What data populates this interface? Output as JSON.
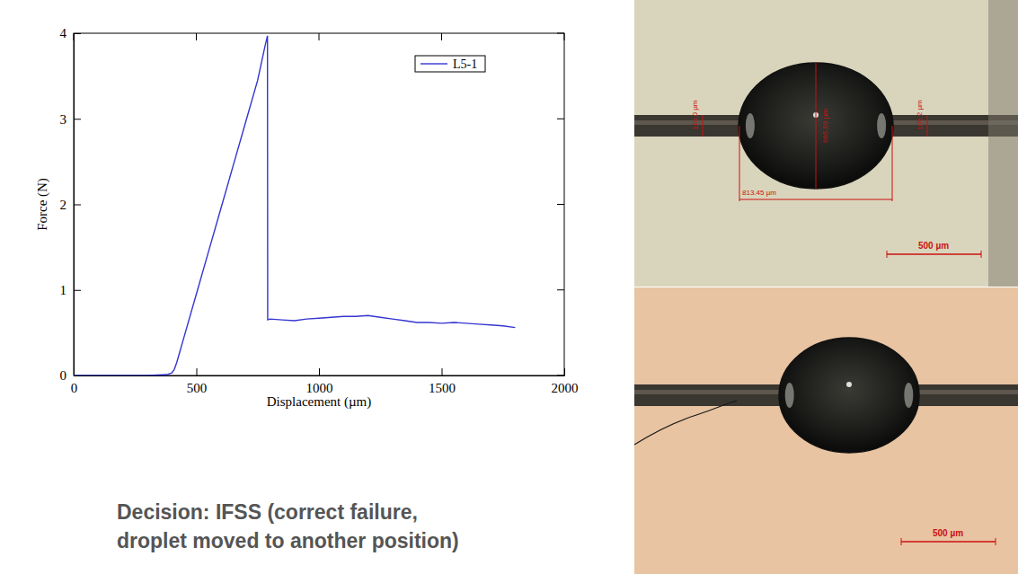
{
  "chart_data": {
    "type": "line",
    "x_label": "Displacement (µm)",
    "y_label": "Force (N)",
    "x": [
      0,
      100,
      200,
      300,
      380,
      400,
      410,
      420,
      430,
      450,
      500,
      550,
      600,
      650,
      700,
      750,
      780,
      790,
      791,
      800,
      850,
      900,
      950,
      1000,
      1050,
      1100,
      1150,
      1200,
      1250,
      1300,
      1350,
      1400,
      1450,
      1500,
      1550,
      1600,
      1650,
      1700,
      1750,
      1800
    ],
    "series": [
      {
        "name": "L5-1",
        "color": "#3535d0",
        "values": [
          0,
          0,
          0,
          0,
          0.01,
          0.03,
          0.07,
          0.15,
          0.25,
          0.45,
          0.95,
          1.45,
          1.95,
          2.45,
          2.95,
          3.45,
          3.85,
          3.97,
          0.65,
          0.66,
          0.65,
          0.64,
          0.66,
          0.67,
          0.68,
          0.69,
          0.69,
          0.7,
          0.68,
          0.66,
          0.64,
          0.62,
          0.62,
          0.61,
          0.62,
          0.61,
          0.6,
          0.59,
          0.58,
          0.56
        ]
      }
    ],
    "xlim": [
      0,
      2000
    ],
    "xticks": [
      0,
      500,
      1000,
      1500,
      2000
    ],
    "ylim": [
      0,
      4
    ],
    "yticks": [
      0,
      1,
      2,
      3,
      4
    ],
    "grid": false,
    "legend": "upper right"
  },
  "slide": {
    "decision_lines": [
      "Decision: IFSS (correct failure,",
      "droplet moved to another position)"
    ],
    "images": [
      {
        "labels": [
          "110.0 µm",
          "665.59 µm",
          "106.2 µm",
          "813.45 µm"
        ],
        "scale_bar": "500 µm"
      },
      {
        "labels": [],
        "scale_bar": "500 µm"
      }
    ]
  }
}
